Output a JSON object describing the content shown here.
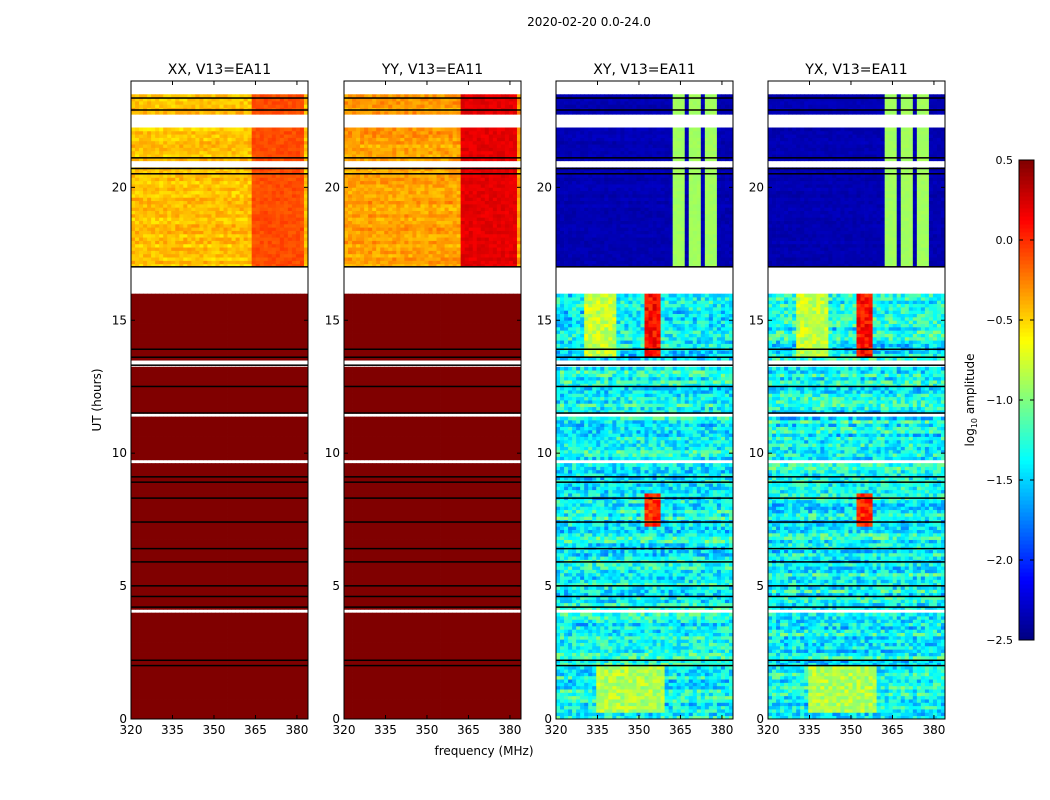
{
  "chart_data": {
    "type": "heatmap",
    "title": "2020-02-20 0.0-24.0",
    "xlabel": "frequency (MHz)",
    "ylabel": "UT (hours)",
    "xlim": [
      320,
      384
    ],
    "ylim": [
      0,
      24
    ],
    "xticks": [
      "320",
      "335",
      "350",
      "365",
      "380"
    ],
    "xtick_values": [
      320,
      335,
      350,
      365,
      380
    ],
    "yticks": [
      "0",
      "5",
      "10",
      "15",
      "20"
    ],
    "ytick_values": [
      0,
      5,
      10,
      15,
      20
    ],
    "colorbar": {
      "label": "log10 amplitude",
      "label_main": "log",
      "label_sub": "10",
      "label_rest": " amplitude",
      "colormap": "jet",
      "range": [
        -2.5,
        0.5
      ],
      "ticks": [
        "0.5",
        "0.0",
        "−0.5",
        "−1.0",
        "−1.5",
        "−2.0",
        "−2.5"
      ],
      "tick_values": [
        0.5,
        0.0,
        -0.5,
        -1.0,
        -1.5,
        -2.0,
        -2.5
      ]
    },
    "flagged_hours": [
      [
        16.0,
        17.0
      ],
      [
        20.7,
        21.05
      ],
      [
        22.3,
        22.8
      ],
      [
        23.5,
        24.0
      ],
      [
        13.3,
        13.45
      ],
      [
        11.4,
        11.5
      ],
      [
        9.6,
        9.75
      ],
      [
        4.05,
        4.15
      ],
      [
        1.2,
        1.3
      ],
      [
        0.5,
        0.55
      ]
    ],
    "black_lines": [
      23.35,
      22.9,
      21.1,
      20.7,
      20.5,
      17.0,
      13.9,
      13.6,
      13.3,
      12.5,
      11.5,
      9.1,
      8.9,
      8.3,
      7.4,
      6.4,
      5.9,
      5.0,
      4.6,
      4.2,
      2.2,
      2.0
    ],
    "panels": [
      {
        "title": "XX, V13=EA11",
        "segments": [
          {
            "t0": 0,
            "t1": 16,
            "value": 0.5,
            "noise": 0.0
          },
          {
            "t0": 17,
            "t1": 24,
            "value": -0.45,
            "noise": 0.12
          }
        ],
        "features": [
          {
            "f0": 363,
            "f1": 382,
            "t0": 17,
            "t1": 24,
            "value": -0.1
          }
        ]
      },
      {
        "title": "YY, V13=EA11",
        "segments": [
          {
            "t0": 0,
            "t1": 16,
            "value": 0.5,
            "noise": 0.0
          },
          {
            "t0": 17,
            "t1": 24,
            "value": -0.35,
            "noise": 0.12
          }
        ],
        "features": [
          {
            "f0": 362,
            "f1": 382,
            "t0": 17,
            "t1": 24,
            "value": 0.2
          }
        ]
      },
      {
        "title": "XY, V13=EA11",
        "segments": [
          {
            "t0": 0,
            "t1": 16,
            "value": -1.35,
            "noise": 0.35
          },
          {
            "t0": 17,
            "t1": 24,
            "value": -2.35,
            "noise": 0.05
          }
        ],
        "features": [
          {
            "f0": 362,
            "f1": 366,
            "t0": 17,
            "t1": 24,
            "value": -0.9
          },
          {
            "f0": 368,
            "f1": 372,
            "t0": 17,
            "t1": 24,
            "value": -0.9
          },
          {
            "f0": 374,
            "f1": 378,
            "t0": 17,
            "t1": 24,
            "value": -0.9
          },
          {
            "f0": 330,
            "f1": 342,
            "t0": 13.6,
            "t1": 16,
            "value": -0.8
          },
          {
            "f0": 352,
            "f1": 358,
            "t0": 13.6,
            "t1": 16,
            "value": 0.1
          },
          {
            "f0": 352,
            "f1": 358,
            "t0": 7.3,
            "t1": 8.5,
            "value": 0.0
          },
          {
            "f0": 334,
            "f1": 360,
            "t0": 0.2,
            "t1": 2.0,
            "value": -0.85
          }
        ]
      },
      {
        "title": "YX, V13=EA11",
        "segments": [
          {
            "t0": 0,
            "t1": 16,
            "value": -1.35,
            "noise": 0.35
          },
          {
            "t0": 17,
            "t1": 24,
            "value": -2.35,
            "noise": 0.05
          }
        ],
        "features": [
          {
            "f0": 362,
            "f1": 366,
            "t0": 17,
            "t1": 24,
            "value": -0.9
          },
          {
            "f0": 368,
            "f1": 372,
            "t0": 17,
            "t1": 24,
            "value": -0.9
          },
          {
            "f0": 374,
            "f1": 378,
            "t0": 17,
            "t1": 24,
            "value": -0.9
          },
          {
            "f0": 330,
            "f1": 342,
            "t0": 13.6,
            "t1": 16,
            "value": -0.8
          },
          {
            "f0": 352,
            "f1": 358,
            "t0": 13.6,
            "t1": 16,
            "value": 0.1
          },
          {
            "f0": 352,
            "f1": 358,
            "t0": 7.3,
            "t1": 8.5,
            "value": 0.0
          },
          {
            "f0": 334,
            "f1": 360,
            "t0": 0.2,
            "t1": 2.0,
            "value": -0.85
          }
        ]
      }
    ]
  }
}
